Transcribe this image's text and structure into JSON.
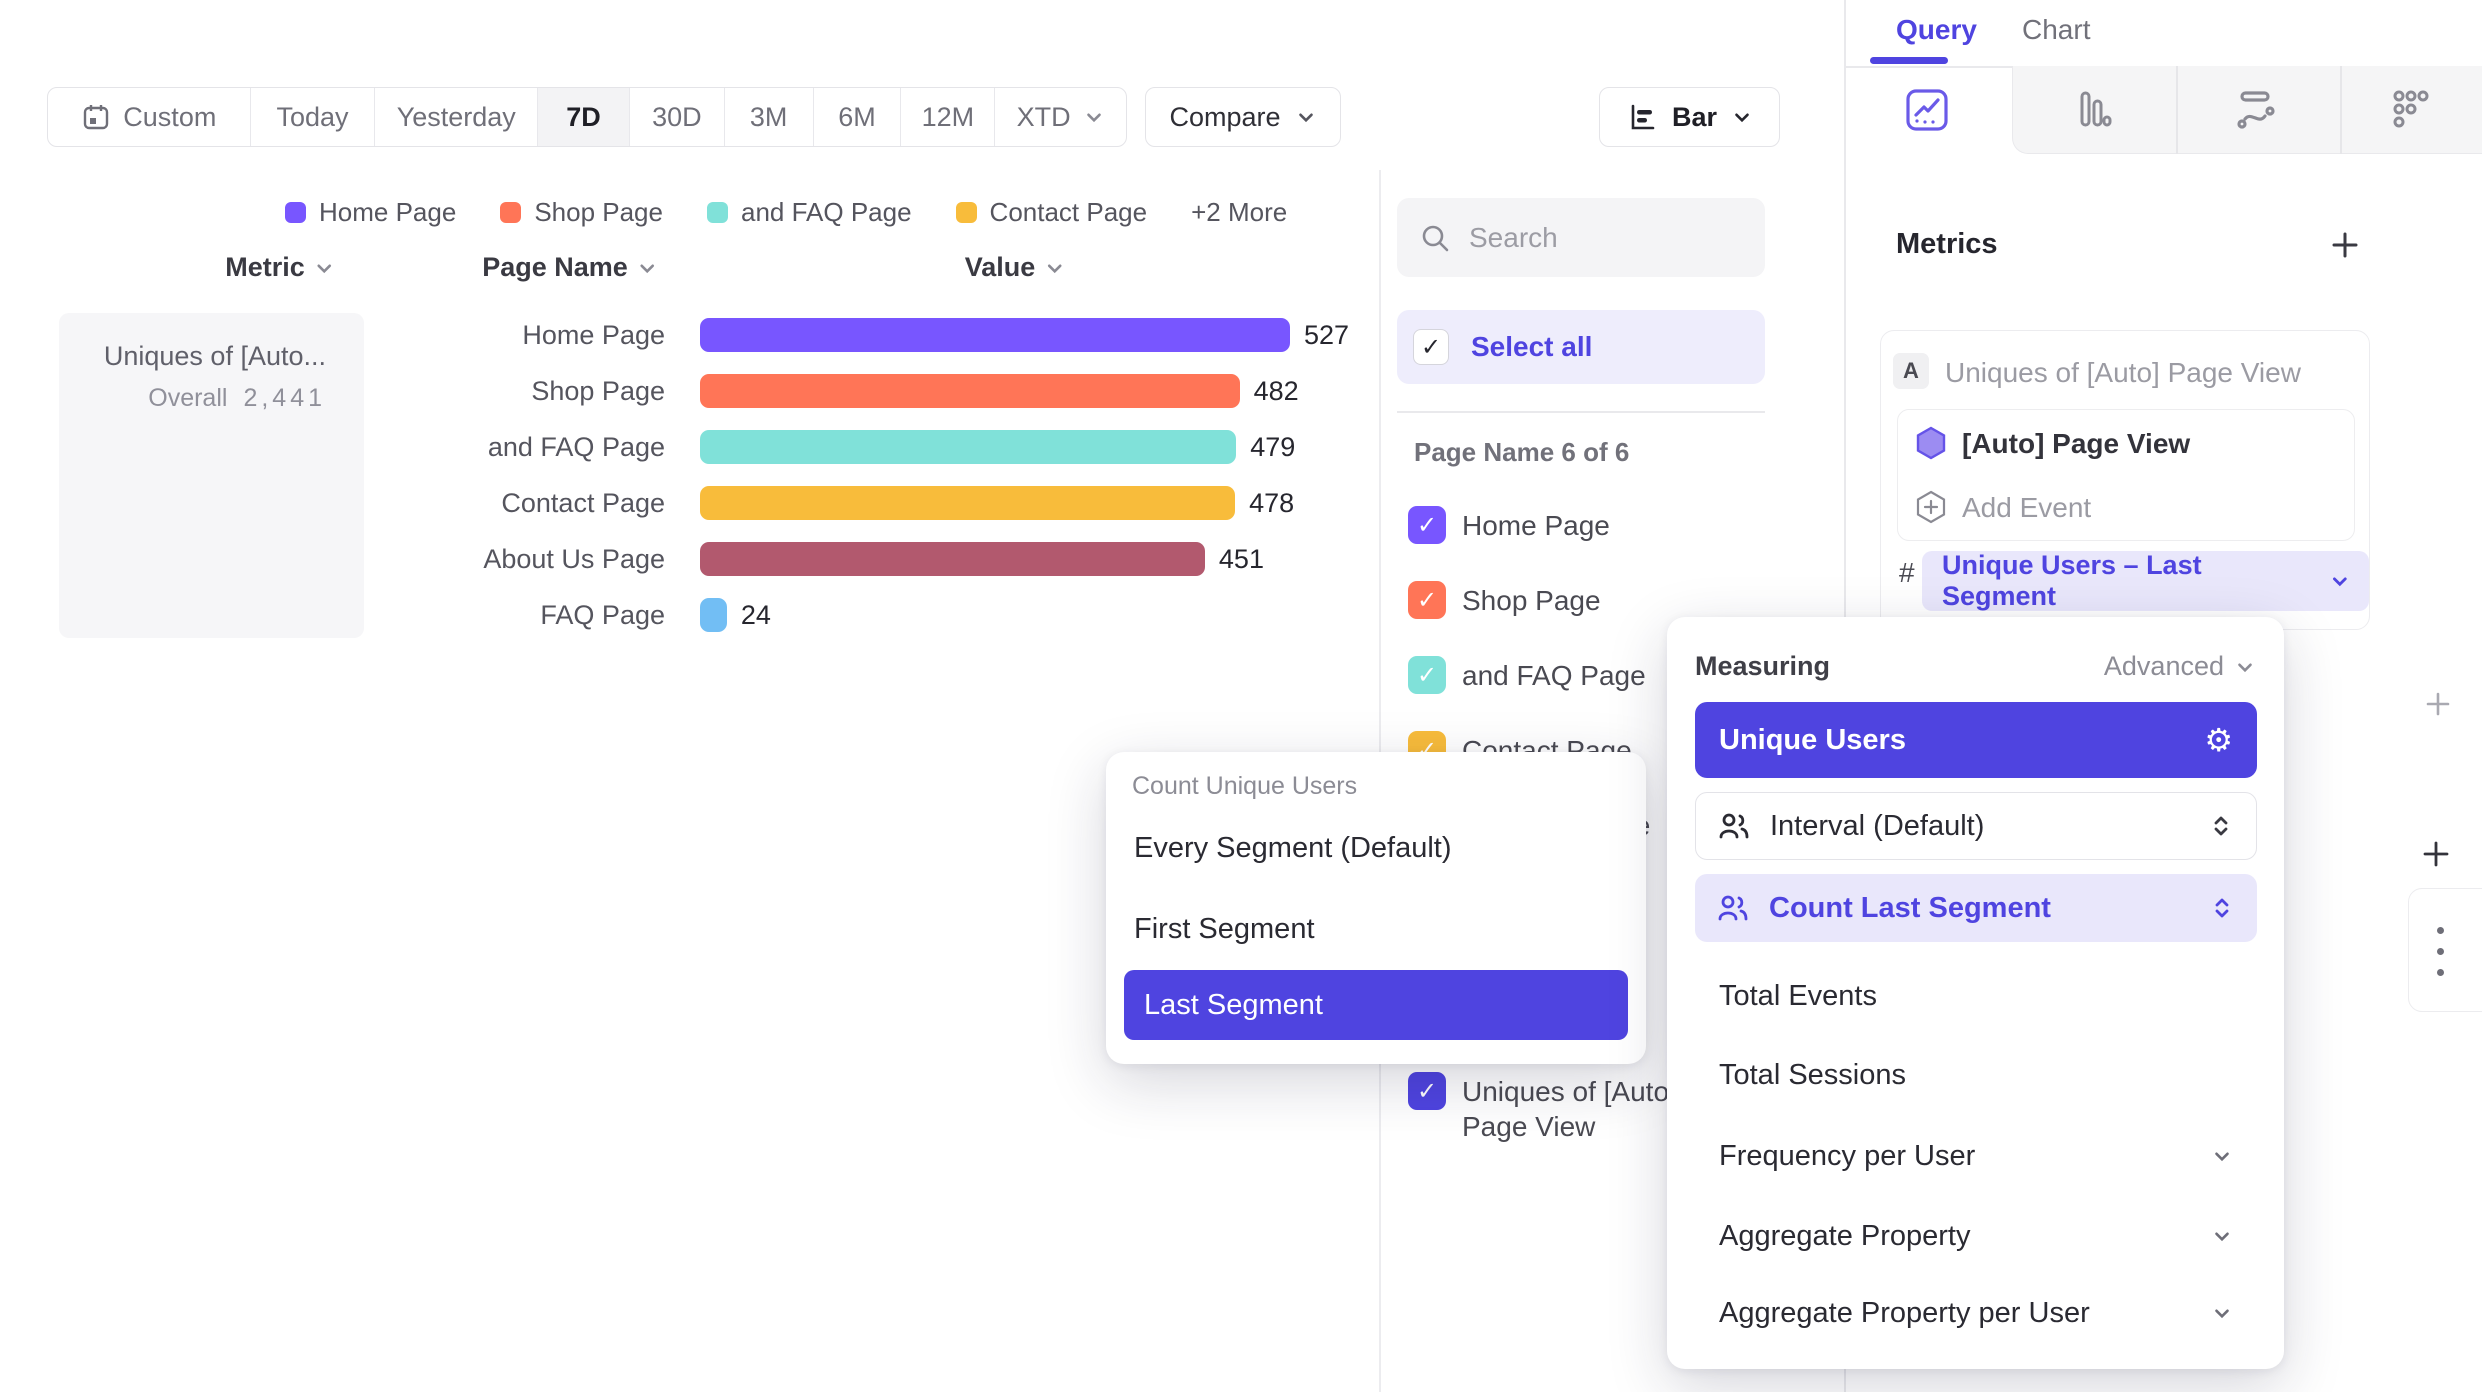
{
  "toolbar": {
    "date_presets": [
      "Custom",
      "Today",
      "Yesterday",
      "7D",
      "30D",
      "3M",
      "6M",
      "12M",
      "XTD"
    ],
    "active_preset": "7D",
    "compare_label": "Compare",
    "chart_type_label": "Bar"
  },
  "legend": {
    "items": [
      {
        "label": "Home Page",
        "color": "#7856FF"
      },
      {
        "label": "Shop Page",
        "color": "#FF7557"
      },
      {
        "label": "and FAQ Page",
        "color": "#80E1D9"
      },
      {
        "label": "Contact Page",
        "color": "#F8BC3B"
      }
    ],
    "more": "+2 More"
  },
  "table": {
    "metric_header": "Metric",
    "page_header": "Page Name",
    "value_header": "Value"
  },
  "summary_card": {
    "title": "Uniques of [Auto...",
    "overall_label": "Overall",
    "overall_value": "2,441"
  },
  "chart_data": {
    "type": "bar",
    "orientation": "horizontal",
    "metric": "Uniques of [Auto] Page View",
    "categories": [
      "Home Page",
      "Shop Page",
      "and FAQ Page",
      "Contact Page",
      "About Us Page",
      "FAQ Page"
    ],
    "values": [
      527,
      482,
      479,
      478,
      451,
      24
    ],
    "colors": [
      "#7856FF",
      "#FF7557",
      "#80E1D9",
      "#F8BC3B",
      "#B2596E",
      "#72BEF4"
    ],
    "overall": 2441,
    "xlim": [
      0,
      527
    ],
    "legend_position": "top"
  },
  "filters": {
    "search_placeholder": "Search",
    "select_all_label": "Select all",
    "group_label": "Page Name 6 of 6",
    "items": [
      {
        "label": "Home Page",
        "color": "#7856FF"
      },
      {
        "label": "Shop Page",
        "color": "#FF7557"
      },
      {
        "label": "and FAQ Page",
        "color": "#80E1D9"
      },
      {
        "label": "Contact Page",
        "color": "#F8BC3B"
      },
      {
        "label": "About Us Page",
        "color": "#B2596E"
      },
      {
        "label": "FAQ Page",
        "color": "#72BEF4"
      }
    ],
    "metric_item": {
      "label": "Uniques of [Auto] Page View",
      "color": "#4F44E0"
    }
  },
  "count_menu": {
    "title": "Count Unique Users",
    "options": [
      "Every Segment (Default)",
      "First Segment",
      "Last Segment"
    ],
    "selected": "Last Segment"
  },
  "measure_menu": {
    "title": "Measuring",
    "advanced_label": "Advanced",
    "selected_option": "Unique Users",
    "interval_label": "Interval (Default)",
    "count_segment_label": "Count Last Segment",
    "options": [
      "Total Events",
      "Total Sessions"
    ],
    "expandable": [
      "Frequency per User",
      "Aggregate Property",
      "Aggregate Property per User"
    ]
  },
  "sidebar": {
    "tabs": [
      {
        "label": "Query"
      },
      {
        "label": "Chart"
      }
    ],
    "active_tab": "Query",
    "metrics_title": "Metrics",
    "metric_row": {
      "badge": "A",
      "summary": "Uniques of [Auto] Page View",
      "event_label": "[Auto] Page View",
      "add_event_label": "Add Event",
      "operator": "#",
      "measure_label": "Unique Users – Last Segment"
    }
  },
  "colors": {
    "accent": "#4F44E0",
    "lavender": "#E9E7FB",
    "lavender_light": "#EEEDFC"
  }
}
